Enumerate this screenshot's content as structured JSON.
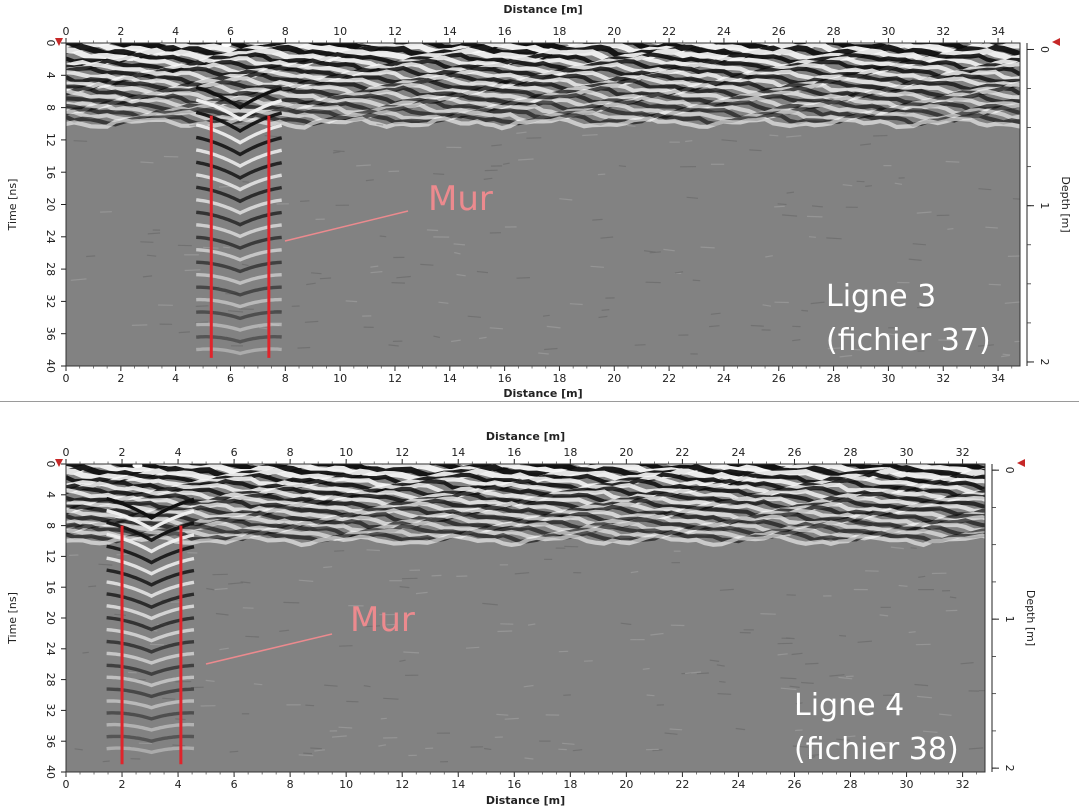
{
  "chart_data": [
    {
      "type": "heatmap",
      "title": "",
      "xlabel": "Distance [m]",
      "ylabel": "Time [ns]",
      "y2label": "Depth [m]",
      "xlim": [
        0,
        34.8
      ],
      "ylim": [
        0,
        40
      ],
      "x_ticks": [
        0,
        2,
        4,
        6,
        8,
        10,
        12,
        14,
        16,
        18,
        20,
        22,
        24,
        26,
        28,
        30,
        32,
        34
      ],
      "y_ticks": [
        0,
        4,
        8,
        12,
        16,
        20,
        24,
        28,
        32,
        36,
        40
      ],
      "depth_ticks": [
        0,
        1,
        2
      ],
      "grid": false,
      "annotation": "Mur",
      "wall_markers_m": [
        5.3,
        7.4
      ],
      "wall_marker_time_ns": [
        9,
        39
      ],
      "label_lines": [
        "Ligne 3",
        "(fichier 37)"
      ],
      "colors": {
        "wall_marker": "#e0242b",
        "annotation": "#ec8a8e",
        "background": "#828282"
      }
    },
    {
      "type": "heatmap",
      "title": "",
      "xlabel": "Distance [m]",
      "ylabel": "Time [ns]",
      "y2label": "Depth [m]",
      "xlim": [
        0,
        32.8
      ],
      "ylim": [
        0,
        40
      ],
      "x_ticks": [
        0,
        2,
        4,
        6,
        8,
        10,
        12,
        14,
        16,
        18,
        20,
        22,
        24,
        26,
        28,
        30,
        32
      ],
      "y_ticks": [
        0,
        4,
        8,
        12,
        16,
        20,
        24,
        28,
        32,
        36,
        40
      ],
      "depth_ticks": [
        0,
        1,
        2
      ],
      "grid": false,
      "annotation": "Mur",
      "wall_markers_m": [
        2.0,
        4.1
      ],
      "wall_marker_time_ns": [
        8,
        39
      ],
      "label_lines": [
        "Ligne 4",
        "(fichier 38)"
      ],
      "colors": {
        "wall_marker": "#e0242b",
        "annotation": "#ec8a8e",
        "background": "#828282"
      }
    }
  ]
}
